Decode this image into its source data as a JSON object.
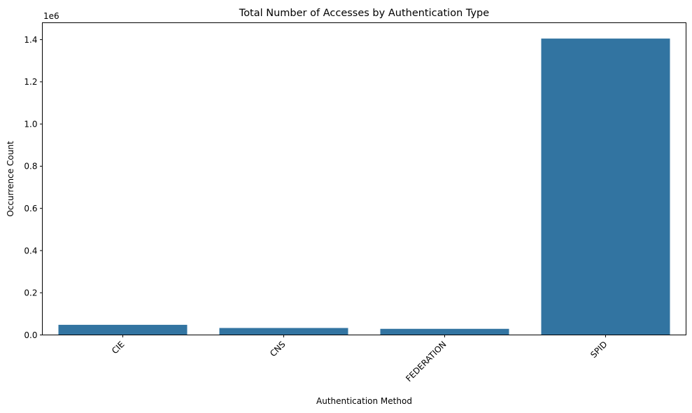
{
  "chart_data": {
    "type": "bar",
    "title": "Total Number of Accesses by Authentication Type",
    "xlabel": "Authentication Method",
    "ylabel": "Occurrence Count",
    "offset_label": "1e6",
    "categories": [
      "CIE",
      "CNS",
      "FEDERATION",
      "SPID"
    ],
    "values": [
      48000,
      33000,
      29000,
      1405000
    ],
    "ylim": [
      0,
      1480000
    ],
    "yticks": [
      0,
      200000,
      400000,
      600000,
      800000,
      1000000,
      1200000,
      1400000
    ],
    "ytick_labels": [
      "0.0",
      "0.2",
      "0.4",
      "0.6",
      "0.8",
      "1.0",
      "1.2",
      "1.4"
    ],
    "grid": false,
    "bar_color": "#3274a1"
  }
}
